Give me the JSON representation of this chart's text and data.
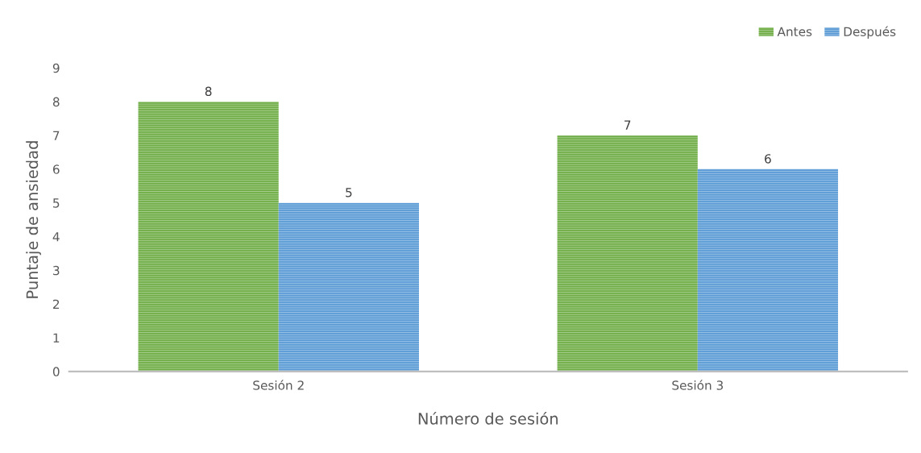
{
  "chart_data": {
    "type": "bar",
    "xlabel": "Número de sesión",
    "ylabel": "Puntaje de ansiedad",
    "categories": [
      "Sesión 2",
      "Sesión 3"
    ],
    "series": [
      {
        "name": "Antes",
        "color": "#70ad47",
        "values": [
          8,
          7
        ]
      },
      {
        "name": "Después",
        "color": "#5b9bd5",
        "values": [
          5,
          6
        ]
      }
    ],
    "ylim": [
      0,
      9
    ],
    "yticks": [
      0,
      1,
      2,
      3,
      4,
      5,
      6,
      7,
      8,
      9
    ],
    "grid": false,
    "legend": "top right",
    "data_labels": true
  }
}
